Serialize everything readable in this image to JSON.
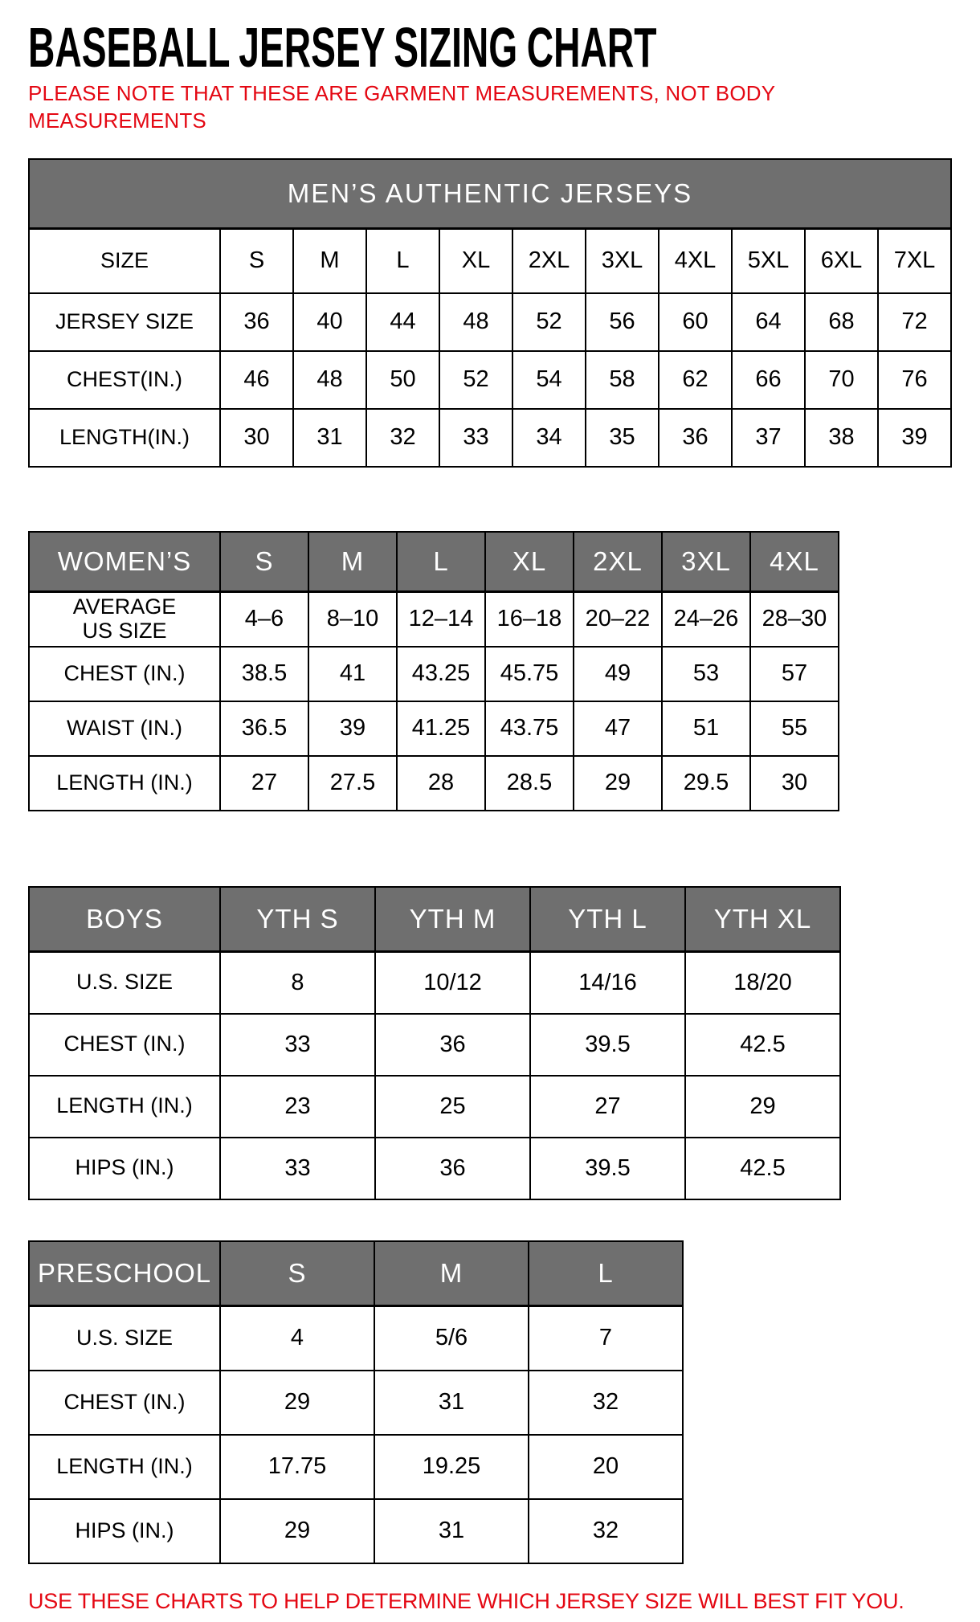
{
  "page": {
    "title": "BASEBALL JERSEY SIZING CHART",
    "note": "PLEASE NOTE THAT THESE ARE GARMENT MEASUREMENTS, NOT BODY\nMEASUREMENTS",
    "footer": "USE THESE CHARTS TO HELP DETERMINE WHICH JERSEY SIZE WILL BEST FIT YOU.",
    "colors": {
      "accent_red": "#e40813",
      "header_gray": "#6f6f6f",
      "border": "#000000",
      "text": "#000000",
      "background": "#ffffff"
    }
  },
  "tables": [
    {
      "id": "mens",
      "banner": "MEN’S AUTHENTIC JERSEYS",
      "columns": [
        "SIZE",
        "S",
        "M",
        "L",
        "XL",
        "2XL",
        "3XL",
        "4XL",
        "5XL",
        "6XL",
        "7XL"
      ],
      "rows": [
        {
          "label": "JERSEY SIZE",
          "values": [
            "36",
            "40",
            "44",
            "48",
            "52",
            "56",
            "60",
            "64",
            "68",
            "72"
          ]
        },
        {
          "label": "CHEST(IN.)",
          "values": [
            "46",
            "48",
            "50",
            "52",
            "54",
            "58",
            "62",
            "66",
            "70",
            "76"
          ]
        },
        {
          "label": "LENGTH(IN.)",
          "values": [
            "30",
            "31",
            "32",
            "33",
            "34",
            "35",
            "36",
            "37",
            "38",
            "39"
          ]
        }
      ]
    },
    {
      "id": "womens",
      "columns": [
        "WOMEN’S",
        "S",
        "M",
        "L",
        "XL",
        "2XL",
        "3XL",
        "4XL"
      ],
      "rows": [
        {
          "label": "AVERAGE\nUS SIZE",
          "values": [
            "4–6",
            "8–10",
            "12–14",
            "16–18",
            "20–22",
            "24–26",
            "28–30"
          ]
        },
        {
          "label": "CHEST (IN.)",
          "values": [
            "38.5",
            "41",
            "43.25",
            "45.75",
            "49",
            "53",
            "57"
          ]
        },
        {
          "label": "WAIST (IN.)",
          "values": [
            "36.5",
            "39",
            "41.25",
            "43.75",
            "47",
            "51",
            "55"
          ]
        },
        {
          "label": "LENGTH (IN.)",
          "values": [
            "27",
            "27.5",
            "28",
            "28.5",
            "29",
            "29.5",
            "30"
          ]
        }
      ]
    },
    {
      "id": "boys",
      "columns": [
        "BOYS",
        "YTH S",
        "YTH M",
        "YTH L",
        "YTH XL"
      ],
      "rows": [
        {
          "label": "U.S. SIZE",
          "values": [
            "8",
            "10/12",
            "14/16",
            "18/20"
          ]
        },
        {
          "label": "CHEST (IN.)",
          "values": [
            "33",
            "36",
            "39.5",
            "42.5"
          ]
        },
        {
          "label": "LENGTH (IN.)",
          "values": [
            "23",
            "25",
            "27",
            "29"
          ]
        },
        {
          "label": "HIPS (IN.)",
          "values": [
            "33",
            "36",
            "39.5",
            "42.5"
          ]
        }
      ]
    },
    {
      "id": "preschool",
      "columns": [
        "PRESCHOOL",
        "S",
        "M",
        "L"
      ],
      "rows": [
        {
          "label": "U.S. SIZE",
          "values": [
            "4",
            "5/6",
            "7"
          ]
        },
        {
          "label": "CHEST (IN.)",
          "values": [
            "29",
            "31",
            "32"
          ]
        },
        {
          "label": "LENGTH (IN.)",
          "values": [
            "17.75",
            "19.25",
            "20"
          ]
        },
        {
          "label": "HIPS (IN.)",
          "values": [
            "29",
            "31",
            "32"
          ]
        }
      ]
    }
  ]
}
